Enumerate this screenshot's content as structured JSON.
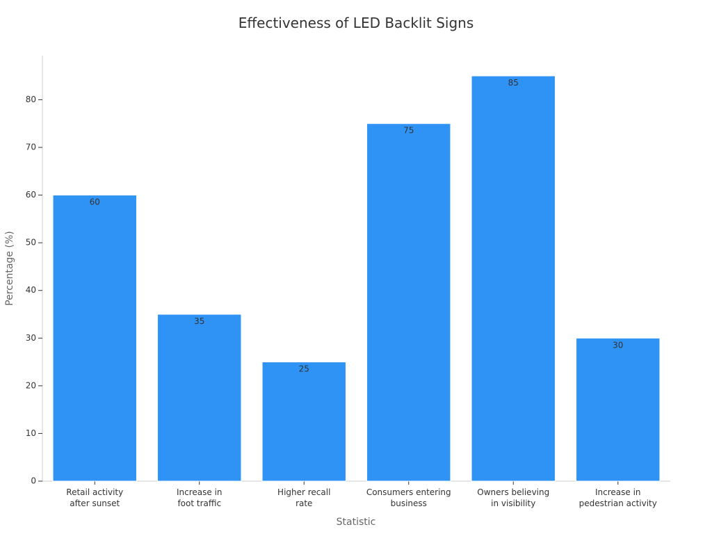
{
  "chart_data": {
    "type": "bar",
    "title": "Effectiveness of LED Backlit Signs",
    "xlabel": "Statistic",
    "ylabel": "Percentage (%)",
    "categories": [
      [
        "Retail activity",
        "after sunset"
      ],
      [
        "Increase in",
        "foot traffic"
      ],
      [
        "Higher recall",
        "rate"
      ],
      [
        "Consumers entering",
        "business"
      ],
      [
        "Owners believing",
        "in visibility"
      ],
      [
        "Increase in",
        "pedestrian activity"
      ]
    ],
    "values": [
      60,
      35,
      25,
      75,
      85,
      30
    ],
    "ylim": [
      0,
      89.25
    ],
    "yticks": [
      0,
      10,
      20,
      30,
      40,
      50,
      60,
      70,
      80
    ],
    "grid": false,
    "legend": "none",
    "colors": {
      "bar": "#2f93f6",
      "text": "#333333",
      "axis_title": "#666666",
      "axis_line": "#cccccc"
    }
  }
}
